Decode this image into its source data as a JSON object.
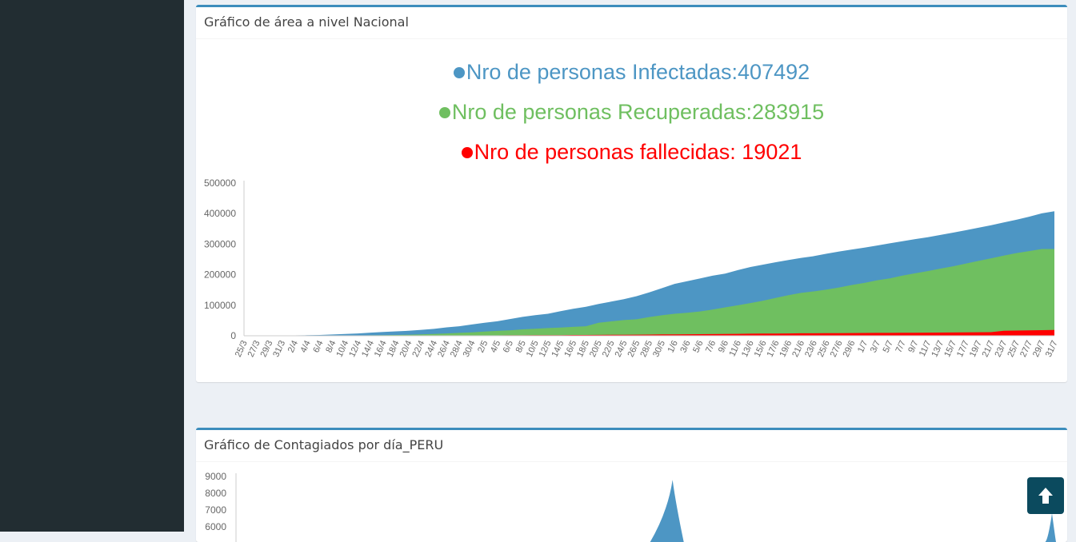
{
  "colors": {
    "infected": "#4d96c4",
    "recovered": "#6fbf60",
    "deaths": "#ff0000",
    "sidebar": "#222d32",
    "accent": "#3c8dbc",
    "scroll_button": "#0b4a5e"
  },
  "area_box": {
    "title": "Gráfico de área a nivel Nacional",
    "legend": {
      "infected": "Nro de personas Infectadas:407492",
      "recovered": "Nro de personas Recuperadas:283915",
      "deaths": "Nro de personas fallecidas: 19021"
    }
  },
  "daily_box": {
    "title": "Gráfico de Contagiados por día_PERU"
  },
  "scroll_top": {
    "icon": "arrow-up-icon"
  },
  "chart_data": [
    {
      "type": "area",
      "title": "",
      "xlabel": "",
      "ylabel": "",
      "ylim": [
        0,
        500000
      ],
      "yticks": [
        0,
        100000,
        200000,
        300000,
        400000,
        500000
      ],
      "grid": false,
      "x": [
        "25/3",
        "27/3",
        "29/3",
        "31/3",
        "2/4",
        "4/4",
        "6/4",
        "8/4",
        "10/4",
        "12/4",
        "14/4",
        "16/4",
        "18/4",
        "20/4",
        "22/4",
        "24/4",
        "26/4",
        "28/4",
        "30/4",
        "2/5",
        "4/5",
        "6/5",
        "8/5",
        "10/5",
        "12/5",
        "14/5",
        "16/5",
        "18/5",
        "20/5",
        "22/5",
        "24/5",
        "26/5",
        "28/5",
        "30/5",
        "1/6",
        "3/6",
        "5/6",
        "7/6",
        "9/6",
        "11/6",
        "13/6",
        "15/6",
        "17/6",
        "19/6",
        "21/6",
        "23/6",
        "25/6",
        "27/6",
        "29/6",
        "1/7",
        "3/7",
        "5/7",
        "7/7",
        "9/7",
        "11/7",
        "13/7",
        "15/7",
        "17/7",
        "19/7",
        "21/7",
        "23/7",
        "25/7",
        "27/7",
        "29/7",
        "31/7"
      ],
      "series": [
        {
          "key": "infected",
          "values": [
            500,
            700,
            900,
            1100,
            1400,
            1800,
            2500,
            4300,
            5900,
            7500,
            10300,
            12500,
            14400,
            16300,
            19300,
            22500,
            27500,
            31200,
            36900,
            42500,
            47400,
            54800,
            61800,
            67300,
            72000,
            80600,
            88500,
            94900,
            104000,
            111700,
            119900,
            129700,
            141800,
            155700,
            170000,
            178900,
            187400,
            196500,
            203700,
            214800,
            225100,
            232900,
            240900,
            247900,
            254900,
            260800,
            268600,
            275900,
            282400,
            288500,
            295600,
            302700,
            309300,
            316400,
            322700,
            330100,
            337700,
            345500,
            353600,
            362100,
            371100,
            379900,
            389700,
            400700,
            407492
          ]
        },
        {
          "key": "recovered",
          "values": [
            0,
            0,
            0,
            0,
            0,
            100,
            200,
            400,
            700,
            1000,
            1500,
            2000,
            2500,
            3300,
            4600,
            6100,
            7600,
            9300,
            10900,
            13500,
            15900,
            17900,
            20900,
            23100,
            25000,
            27000,
            29100,
            31200,
            42400,
            47000,
            51200,
            54000,
            61300,
            67000,
            71900,
            75500,
            79600,
            85700,
            92900,
            99800,
            107100,
            114800,
            124100,
            133100,
            140200,
            145400,
            151000,
            158200,
            166200,
            173100,
            181600,
            187900,
            196900,
            204500,
            211900,
            219800,
            227600,
            236200,
            245100,
            253600,
            262400,
            270700,
            277300,
            283915,
            283915
          ]
        },
        {
          "key": "deaths",
          "values": [
            5,
            10,
            20,
            40,
            60,
            100,
            150,
            200,
            230,
            300,
            350,
            450,
            500,
            600,
            700,
            830,
            900,
            1000,
            1100,
            1300,
            1400,
            1500,
            1700,
            1900,
            2000,
            2200,
            2500,
            2700,
            3000,
            3200,
            3400,
            3600,
            3900,
            4400,
            4700,
            5000,
            5300,
            5600,
            6000,
            6300,
            6700,
            7100,
            7400,
            7700,
            8000,
            8200,
            8400,
            8600,
            8900,
            9100,
            9300,
            9500,
            9700,
            10000,
            10300,
            10600,
            10800,
            11100,
            11400,
            11800,
            16500,
            17000,
            17600,
            18400,
            19021
          ]
        }
      ]
    },
    {
      "type": "area",
      "title": "",
      "xlabel": "",
      "ylabel": "",
      "ylim": [
        6000,
        9000
      ],
      "yticks": [
        6000,
        7000,
        8000,
        9000
      ],
      "grid": false,
      "x_range": [
        0,
        100
      ],
      "visible_peaks": [
        {
          "x": 53.5,
          "value": 8800
        },
        {
          "x": 100,
          "value": 6800
        }
      ]
    }
  ]
}
